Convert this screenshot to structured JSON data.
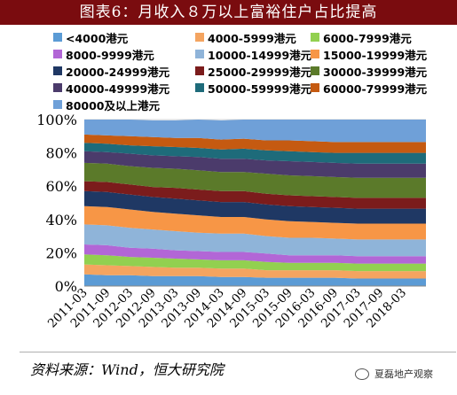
{
  "title": "图表6：月收入８万以上富裕住户占比提高",
  "source": "资料来源：Wind，恒大研究院",
  "watermark": "夏磊地产观察",
  "chart_data": {
    "type": "area",
    "stacked": true,
    "percent": true,
    "ylim": [
      0,
      100
    ],
    "yticks": [
      "0%",
      "20%",
      "40%",
      "60%",
      "80%",
      "100%"
    ],
    "xtick_labels": [
      "2011-03",
      "2011-09",
      "2012-03",
      "2012-09",
      "2013-03",
      "2013-09",
      "2014-03",
      "2014-09",
      "2015-03",
      "2015-09",
      "2016-03",
      "2016-09",
      "2017-03",
      "2017-09",
      "2018-03"
    ],
    "x": [
      "2011-03",
      "2011-09",
      "2012-03",
      "2012-09",
      "2013-03",
      "2013-09",
      "2014-03",
      "2014-09",
      "2015-03",
      "2015-09",
      "2016-03",
      "2016-09",
      "2017-03",
      "2017-09",
      "2018-03",
      "2018-06"
    ],
    "legend_position": "top",
    "series": [
      {
        "name": "<4000港元",
        "color": "#5b9bd5",
        "values": [
          7,
          6.5,
          6.5,
          6,
          6,
          6,
          5.5,
          5.5,
          5,
          5,
          5,
          5,
          4.5,
          4.5,
          4.5,
          4.5
        ]
      },
      {
        "name": "4000-5999港元",
        "color": "#f4a460",
        "values": [
          6,
          6,
          5.5,
          5.5,
          5,
          5,
          5,
          5,
          4.5,
          4.5,
          4.5,
          4.5,
          4.5,
          4.5,
          4.5,
          4.5
        ]
      },
      {
        "name": "6000-7999港元",
        "color": "#92d050",
        "values": [
          6,
          6,
          5.5,
          5.5,
          5.5,
          5,
          5,
          5,
          5,
          4.5,
          4.5,
          4.5,
          4.5,
          4.5,
          4.5,
          4.5
        ]
      },
      {
        "name": "8000-9999港元",
        "color": "#b266d6",
        "values": [
          6,
          6,
          5.5,
          5.5,
          5,
          5,
          5,
          5,
          5,
          4.5,
          4.5,
          4.5,
          4.5,
          4.5,
          4.5,
          4.5
        ]
      },
      {
        "name": "10000-14999港元",
        "color": "#8fb4d9",
        "values": [
          12,
          12,
          12,
          11.5,
          11.5,
          11,
          11,
          11,
          10.5,
          10.5,
          10.5,
          10,
          10,
          10,
          10,
          10
        ]
      },
      {
        "name": "15000-19999港元",
        "color": "#f79646",
        "values": [
          11,
          11,
          11,
          10.5,
          10.5,
          10.5,
          10,
          10,
          10,
          10,
          9.5,
          9.5,
          9.5,
          9.5,
          9.5,
          9.5
        ]
      },
      {
        "name": "20000-24999港元",
        "color": "#1f3864",
        "values": [
          9,
          9,
          9,
          9,
          9,
          9,
          9,
          9,
          9,
          9,
          9,
          9,
          9,
          9,
          9,
          9
        ]
      },
      {
        "name": "25000-29999港元",
        "color": "#7b1c1c",
        "values": [
          6,
          6,
          6,
          6,
          6.5,
          6.5,
          6.5,
          6.5,
          6.5,
          6.5,
          6.5,
          6.5,
          6.5,
          6.5,
          6.5,
          6.5
        ]
      },
      {
        "name": "30000-39999港元",
        "color": "#5b7a2a",
        "values": [
          11,
          11,
          11,
          11.5,
          11.5,
          11.5,
          11.5,
          11.5,
          12,
          12,
          12,
          12,
          12,
          12,
          12,
          12
        ]
      },
      {
        "name": "40000-49999港元",
        "color": "#4b3b6b",
        "values": [
          7,
          7,
          7.5,
          7.5,
          7.5,
          8,
          8,
          8,
          8,
          8.5,
          8.5,
          8.5,
          8.5,
          8.5,
          8.5,
          8.5
        ]
      },
      {
        "name": "50000-59999港元",
        "color": "#1e6b7a",
        "values": [
          5,
          5,
          5,
          5.5,
          5.5,
          5.5,
          5.5,
          6,
          6,
          6,
          6,
          6,
          6.5,
          6.5,
          6.5,
          6.5
        ]
      },
      {
        "name": "60000-79999港元",
        "color": "#c55a11",
        "values": [
          5,
          5,
          5.5,
          5.5,
          5.5,
          6,
          6,
          6,
          6,
          6.5,
          6.5,
          6.5,
          6.5,
          6.5,
          6.5,
          6.5
        ]
      },
      {
        "name": "80000及以上港元",
        "color": "#6fa0d8",
        "values": [
          9,
          9.5,
          10,
          10,
          10.5,
          11,
          11.5,
          11.5,
          12.5,
          13,
          13.5,
          14.5,
          14.5,
          14.5,
          14.5,
          14.5
        ]
      }
    ]
  }
}
